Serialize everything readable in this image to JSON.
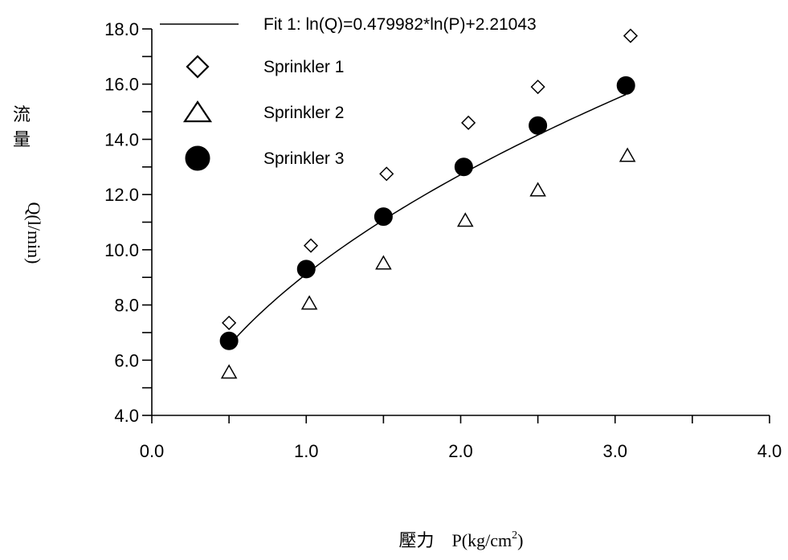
{
  "chart_data": {
    "type": "scatter",
    "xlabel": "壓力　P(kg/cm",
    "xlabel_sup": "2",
    "xlabel_end": ")",
    "ylabel_chars": [
      "流",
      "量"
    ],
    "ylabel_rest": "Q(l/min)",
    "xlim": [
      0.0,
      4.0
    ],
    "ylim": [
      4.0,
      18.0
    ],
    "x_ticks": [
      "0.0",
      "1.0",
      "2.0",
      "3.0",
      "4.0"
    ],
    "y_ticks": [
      "4.0",
      "6.0",
      "8.0",
      "10.0",
      "12.0",
      "14.0",
      "16.0",
      "18.0"
    ],
    "legend_position": "top-left",
    "fit": {
      "label": "Fit 1:   ln(Q)=0.479982*ln(P)+2.21043",
      "a": 0.479982,
      "b": 2.21043,
      "x_range": [
        0.5,
        3.07
      ]
    },
    "series": [
      {
        "name": "Sprinkler 1",
        "marker": "diamond",
        "x": [
          0.5,
          1.03,
          1.52,
          2.05,
          2.5,
          3.1
        ],
        "y": [
          7.35,
          10.15,
          12.75,
          14.6,
          15.9,
          17.75
        ]
      },
      {
        "name": "Sprinkler 2",
        "marker": "triangle",
        "x": [
          0.5,
          1.02,
          1.5,
          2.03,
          2.5,
          3.08
        ],
        "y": [
          5.55,
          8.05,
          9.5,
          11.05,
          12.15,
          13.4
        ]
      },
      {
        "name": "Sprinkler 3",
        "marker": "circle",
        "x": [
          0.5,
          1.0,
          1.5,
          2.02,
          2.5,
          3.07
        ],
        "y": [
          6.7,
          9.3,
          11.2,
          13.0,
          14.5,
          15.95
        ]
      }
    ]
  }
}
